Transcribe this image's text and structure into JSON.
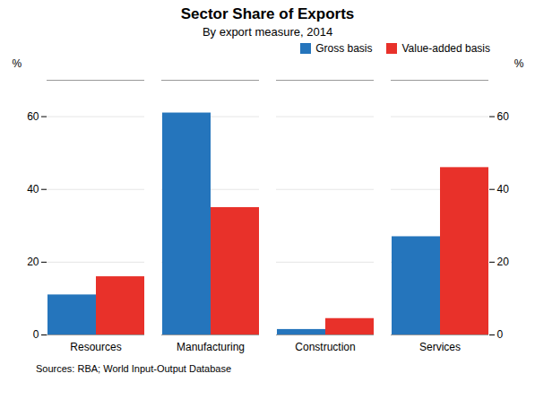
{
  "chart_data": {
    "type": "bar",
    "title": "Sector Share of Exports",
    "subtitle": "By export measure, 2014",
    "categories": [
      "Resources",
      "Manufacturing",
      "Construction",
      "Services"
    ],
    "series": [
      {
        "name": "Gross basis",
        "color": "#2575bc",
        "values": [
          11,
          61,
          1.5,
          27
        ]
      },
      {
        "name": "Value-added basis",
        "color": "#e8312a",
        "values": [
          16,
          35,
          4.5,
          46
        ]
      }
    ],
    "ylabel": "%",
    "ylim": [
      0,
      70
    ],
    "yticks": [
      0,
      20,
      40,
      60
    ],
    "y2label": "%",
    "y2lim": [
      0,
      70
    ],
    "y2ticks": [
      0,
      20,
      40,
      60
    ],
    "grid": true,
    "legend": "upper right",
    "source": "Sources:  RBA; World Input-Output Database"
  }
}
